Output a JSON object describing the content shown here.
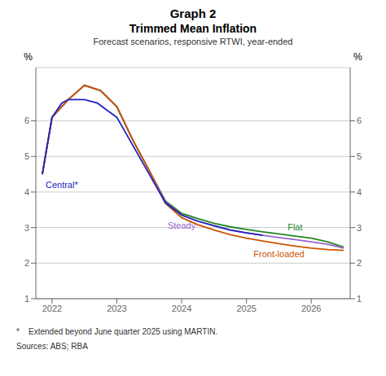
{
  "chart_data": {
    "type": "line",
    "title": "Graph 2",
    "title2": "Trimmed Mean Inflation",
    "subtitle": "Forecast scenarios, responsive RTWI, year-ended",
    "footnote": "*    Extended beyond June quarter 2025 using MARTIN.",
    "sources": "Sources: ABS; RBA",
    "ylabel": "%",
    "y2label": "%",
    "xlim": [
      2021.75,
      2026.6
    ],
    "xticks": [
      2022,
      2023,
      2024,
      2025,
      2026
    ],
    "ylim": [
      1,
      7.5
    ],
    "yticks": [
      1,
      2,
      3,
      4,
      5,
      6
    ],
    "y2lim": [
      1,
      7.5
    ],
    "y2ticks": [
      1,
      2,
      3,
      4,
      5,
      6
    ],
    "grid": true,
    "series": [
      {
        "name": "Flat",
        "color": "#228822",
        "x": [
          2021.85,
          2022.0,
          2022.25,
          2022.5,
          2022.75,
          2023.0,
          2023.25,
          2023.5,
          2023.75,
          2024.0,
          2024.25,
          2024.5,
          2024.75,
          2025.0,
          2025.25,
          2025.5,
          2025.75,
          2026.0,
          2026.25,
          2026.5
        ],
        "values": [
          4.5,
          6.1,
          6.6,
          7.0,
          6.85,
          6.4,
          5.45,
          4.6,
          3.75,
          3.4,
          3.25,
          3.12,
          3.02,
          2.95,
          2.88,
          2.82,
          2.76,
          2.7,
          2.6,
          2.45
        ]
      },
      {
        "name": "Steady",
        "color": "#9966cc",
        "x": [
          2021.85,
          2022.0,
          2022.25,
          2022.5,
          2022.75,
          2023.0,
          2023.25,
          2023.5,
          2023.75,
          2024.0,
          2024.25,
          2024.5,
          2024.75,
          2025.0,
          2025.25,
          2025.5,
          2025.75,
          2026.0,
          2026.25,
          2026.5
        ],
        "values": [
          4.5,
          6.1,
          6.6,
          7.0,
          6.85,
          6.4,
          5.45,
          4.6,
          3.72,
          3.35,
          3.18,
          3.05,
          2.93,
          2.85,
          2.78,
          2.72,
          2.66,
          2.6,
          2.53,
          2.42
        ]
      },
      {
        "name": "Front-loaded",
        "color": "#cc5500",
        "x": [
          2021.85,
          2022.0,
          2022.25,
          2022.5,
          2022.75,
          2023.0,
          2023.25,
          2023.5,
          2023.75,
          2024.0,
          2024.25,
          2024.5,
          2024.75,
          2025.0,
          2025.25,
          2025.5,
          2025.75,
          2026.0,
          2026.25,
          2026.5
        ],
        "values": [
          4.5,
          6.1,
          6.6,
          7.0,
          6.85,
          6.4,
          5.45,
          4.6,
          3.68,
          3.28,
          3.08,
          2.93,
          2.8,
          2.7,
          2.62,
          2.55,
          2.48,
          2.42,
          2.38,
          2.36
        ]
      },
      {
        "name": "Central*",
        "color": "#2222bb",
        "x": [
          2021.85,
          2022.0,
          2022.15,
          2022.25,
          2022.5,
          2022.7,
          2022.85,
          2023.0,
          2023.25,
          2023.5,
          2023.75,
          2024.0,
          2024.25,
          2024.5,
          2024.75,
          2025.0,
          2025.25
        ],
        "values": [
          4.5,
          6.1,
          6.5,
          6.6,
          6.6,
          6.5,
          6.3,
          6.1,
          5.3,
          4.5,
          3.7,
          3.35,
          3.18,
          3.05,
          2.93,
          2.85,
          2.78
        ]
      }
    ]
  }
}
